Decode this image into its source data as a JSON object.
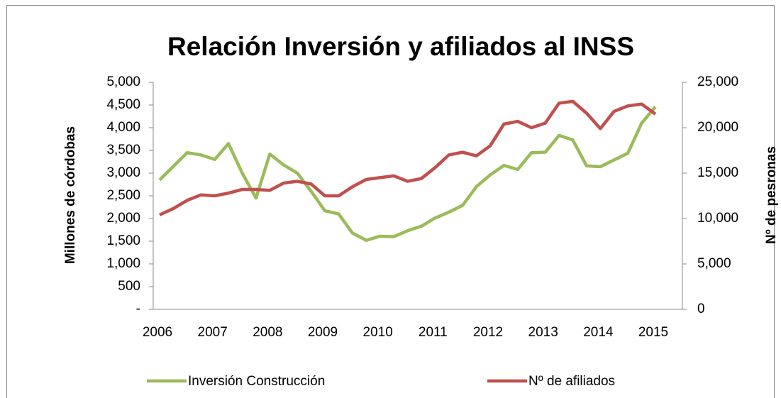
{
  "chart_data": {
    "type": "line",
    "title": "Relación Inversión  y afiliados al INSS",
    "y_label": "Millones de córdobas",
    "y2_label": "Nº de pesronas",
    "categories": [
      "2006",
      null,
      null,
      null,
      "2007",
      null,
      null,
      null,
      "2008",
      null,
      null,
      null,
      "2009",
      null,
      null,
      null,
      "2010",
      null,
      null,
      null,
      "2011",
      null,
      null,
      null,
      "2012",
      null,
      null,
      null,
      "2013",
      null,
      null,
      null,
      "2014",
      null,
      null,
      null,
      "2015"
    ],
    "series": [
      {
        "name": "Inversión Construcción",
        "color": "#9bbb59",
        "values": [
          2850,
          3150,
          3450,
          3400,
          3300,
          3650,
          3000,
          2450,
          3420,
          3180,
          3000,
          2600,
          2170,
          2100,
          1680,
          1520,
          1610,
          1600,
          1730,
          1830,
          2010,
          2140,
          2290,
          2700,
          2960,
          3170,
          3080,
          3450,
          3460,
          3830,
          3730,
          3160,
          3140,
          3290,
          3440,
          4100,
          4460
        ]
      },
      {
        "name": "Nº de afiliados",
        "color": "#c0504d",
        "axis": "y2",
        "values": [
          10400,
          11100,
          12000,
          12600,
          12500,
          12800,
          13200,
          13200,
          13100,
          13900,
          14100,
          13800,
          12500,
          12500,
          13500,
          14300,
          14500,
          14700,
          14100,
          14400,
          15600,
          17000,
          17300,
          16900,
          18000,
          20400,
          20700,
          20000,
          20500,
          22700,
          22900,
          21600,
          19900,
          21800,
          22400,
          22600,
          21500
        ]
      }
    ],
    "ylim": [
      0,
      5000
    ],
    "yticks": [
      {
        "value": 0,
        "label": "-"
      },
      {
        "value": 500,
        "label": "500"
      },
      {
        "value": 1000,
        "label": "1,000"
      },
      {
        "value": 1500,
        "label": "1,500"
      },
      {
        "value": 2000,
        "label": "2,000"
      },
      {
        "value": 2500,
        "label": "2,500"
      },
      {
        "value": 3000,
        "label": "3,000"
      },
      {
        "value": 3500,
        "label": "3,500"
      },
      {
        "value": 4000,
        "label": "4,000"
      },
      {
        "value": 4500,
        "label": "4,500"
      },
      {
        "value": 5000,
        "label": "5,000"
      }
    ],
    "y2lim": [
      0,
      25000
    ],
    "y2ticks": [
      0,
      {
        "value": 5000,
        "label": "5,000"
      },
      {
        "value": 10000,
        "label": "10,000"
      },
      {
        "value": 15000,
        "label": "15,000"
      },
      {
        "value": 20000,
        "label": "20,000"
      },
      {
        "value": 25000,
        "label": "25,000"
      }
    ],
    "grid": false,
    "legend": "bottom"
  }
}
